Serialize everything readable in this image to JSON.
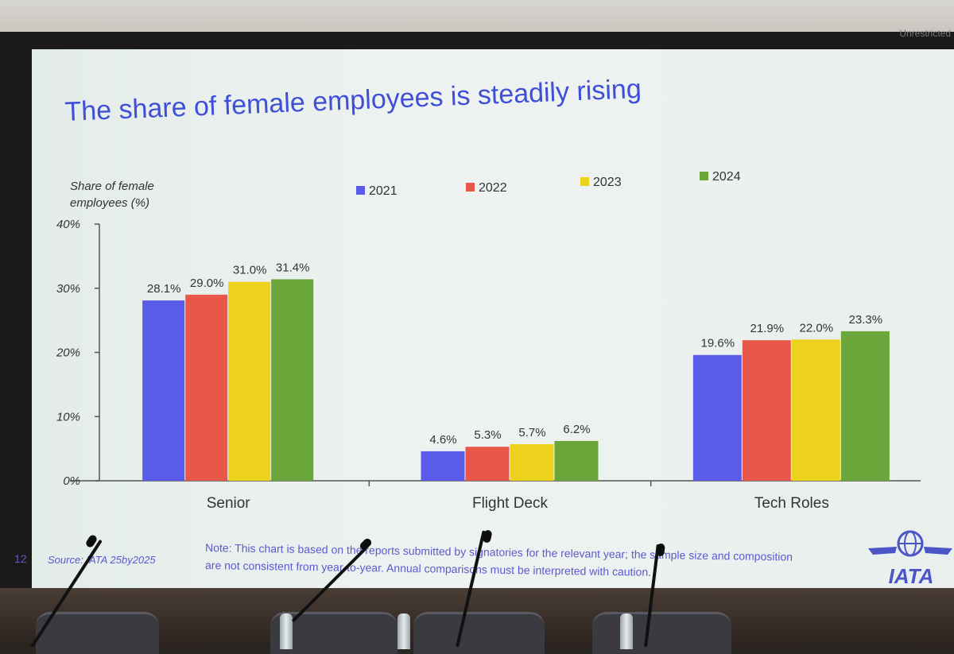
{
  "slide": {
    "classification": "Unrestricted",
    "title": "The share of female employees is steadily rising",
    "page_number": "12",
    "source": "Source: IATA 25by2025",
    "note_line1": "Note: This chart is based on the reports submitted by signatories for the relevant year; the sample size and composition",
    "note_line2": "are not consistent from year-to-year.  Annual comparisons must be interpreted with caution.",
    "logo_text": "IATA"
  },
  "chart_data": {
    "type": "bar",
    "ylabel_line1": "Share of female",
    "ylabel_line2": "employees (%)",
    "categories": [
      "Senior",
      "Flight Deck",
      "Tech Roles"
    ],
    "ylim": [
      0,
      40
    ],
    "yticks": [
      "0%",
      "10%",
      "20%",
      "30%",
      "40%"
    ],
    "legend_position": "top",
    "grid": false,
    "series": [
      {
        "name": "2021",
        "color": "#5b5bea",
        "values": [
          28.1,
          4.6,
          19.6
        ],
        "labels": [
          "28.1%",
          "4.6%",
          "19.6%"
        ]
      },
      {
        "name": "2022",
        "color": "#e8574a",
        "values": [
          29.0,
          5.3,
          21.9
        ],
        "labels": [
          "29.0%",
          "5.3%",
          "21.9%"
        ]
      },
      {
        "name": "2023",
        "color": "#ecd21c",
        "values": [
          31.0,
          5.7,
          22.0
        ],
        "labels": [
          "31.0%",
          "5.7%",
          "22.0%"
        ]
      },
      {
        "name": "2024",
        "color": "#6aa63a",
        "values": [
          31.4,
          6.2,
          23.3
        ],
        "labels": [
          "31.4%",
          "6.2%",
          "23.3%"
        ]
      }
    ]
  },
  "colors": {
    "title": "#3f4fd8",
    "note": "#5a5ad0",
    "axis": "#555555",
    "text": "#333333",
    "logo": "#4a55c8"
  }
}
